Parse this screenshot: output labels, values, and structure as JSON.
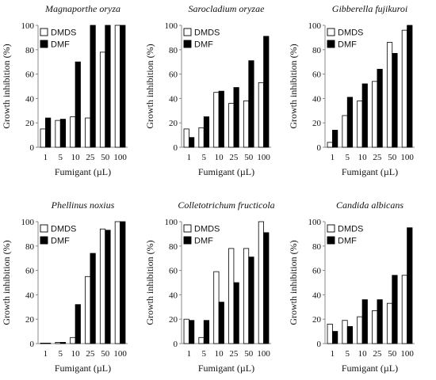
{
  "colors": {
    "dmds": "#ffffff",
    "dmf": "#000000",
    "axis": "#888888"
  },
  "chart_data": [
    {
      "type": "bar",
      "title": "Magnaporthe oryza",
      "xlabel": "Fumigant (µL)",
      "ylabel": "Growth inhibition (%)",
      "ylim": [
        0,
        100
      ],
      "yticks": [
        "0",
        "20",
        "40",
        "60",
        "80",
        "100"
      ],
      "categories": [
        "1",
        "5",
        "10",
        "25",
        "50",
        "100"
      ],
      "legend": "top-left",
      "series": [
        {
          "name": "DMDS",
          "values": [
            15,
            22,
            25,
            24,
            78,
            100
          ]
        },
        {
          "name": "DMF",
          "values": [
            24,
            23,
            70,
            100,
            100,
            100
          ]
        }
      ]
    },
    {
      "type": "bar",
      "title": "Sarocladium oryzae",
      "xlabel": "Fumigant (µL)",
      "ylabel": "Growth inhibition (%)",
      "ylim": [
        0,
        100
      ],
      "yticks": [
        "0",
        "20",
        "40",
        "60",
        "80",
        "100"
      ],
      "categories": [
        "1",
        "5",
        "10",
        "25",
        "50",
        "100"
      ],
      "legend": "top-left",
      "series": [
        {
          "name": "DMDS",
          "values": [
            15,
            16,
            45,
            36,
            38,
            53
          ]
        },
        {
          "name": "DMF",
          "values": [
            8,
            25,
            46,
            49,
            71,
            91
          ]
        }
      ]
    },
    {
      "type": "bar",
      "title": "Gibberella fujikuroi",
      "xlabel": "Fumigant (µL)",
      "ylabel": "Growth inhibition (%)",
      "ylim": [
        0,
        100
      ],
      "yticks": [
        "0",
        "20",
        "40",
        "60",
        "80",
        "100"
      ],
      "categories": [
        "1",
        "5",
        "10",
        "25",
        "50",
        "100"
      ],
      "legend": "top-left",
      "series": [
        {
          "name": "DMDS",
          "values": [
            4,
            26,
            38,
            54,
            86,
            96
          ]
        },
        {
          "name": "DMF",
          "values": [
            14,
            41,
            52,
            64,
            77,
            100
          ]
        }
      ]
    },
    {
      "type": "bar",
      "title": "Phellinus noxius",
      "xlabel": "Fumigant (µL)",
      "ylabel": "Growth inhibition (%)",
      "ylim": [
        0,
        100
      ],
      "yticks": [
        "0",
        "20",
        "40",
        "60",
        "80",
        "100"
      ],
      "categories": [
        "1",
        "5",
        "10",
        "25",
        "50",
        "100"
      ],
      "legend": "top-left",
      "series": [
        {
          "name": "DMDS",
          "values": [
            0,
            1,
            5,
            55,
            94,
            100
          ]
        },
        {
          "name": "DMF",
          "values": [
            0,
            1,
            32,
            74,
            93,
            100
          ]
        }
      ]
    },
    {
      "type": "bar",
      "title": "Colletotrichum fructicola",
      "xlabel": "Fumigant (µL)",
      "ylabel": "Growth inhibition (%)",
      "ylim": [
        0,
        100
      ],
      "yticks": [
        "0",
        "20",
        "40",
        "60",
        "80",
        "100"
      ],
      "categories": [
        "1",
        "5",
        "10",
        "25",
        "50",
        "100"
      ],
      "legend": "top-left",
      "series": [
        {
          "name": "DMDS",
          "values": [
            20,
            5,
            59,
            78,
            78,
            100
          ]
        },
        {
          "name": "DMF",
          "values": [
            19,
            19,
            34,
            50,
            71,
            91
          ]
        }
      ]
    },
    {
      "type": "bar",
      "title": "Candida albicans",
      "xlabel": "Fumigant (µL)",
      "ylabel": "Growth inhibition (%)",
      "ylim": [
        0,
        100
      ],
      "yticks": [
        "0",
        "20",
        "40",
        "60",
        "80",
        "100"
      ],
      "categories": [
        "1",
        "5",
        "10",
        "25",
        "50",
        "100"
      ],
      "legend": "top-left",
      "series": [
        {
          "name": "DMDS",
          "values": [
            16,
            19,
            22,
            27,
            33,
            56
          ]
        },
        {
          "name": "DMF",
          "values": [
            10,
            14,
            36,
            36,
            56,
            95
          ]
        }
      ]
    }
  ]
}
